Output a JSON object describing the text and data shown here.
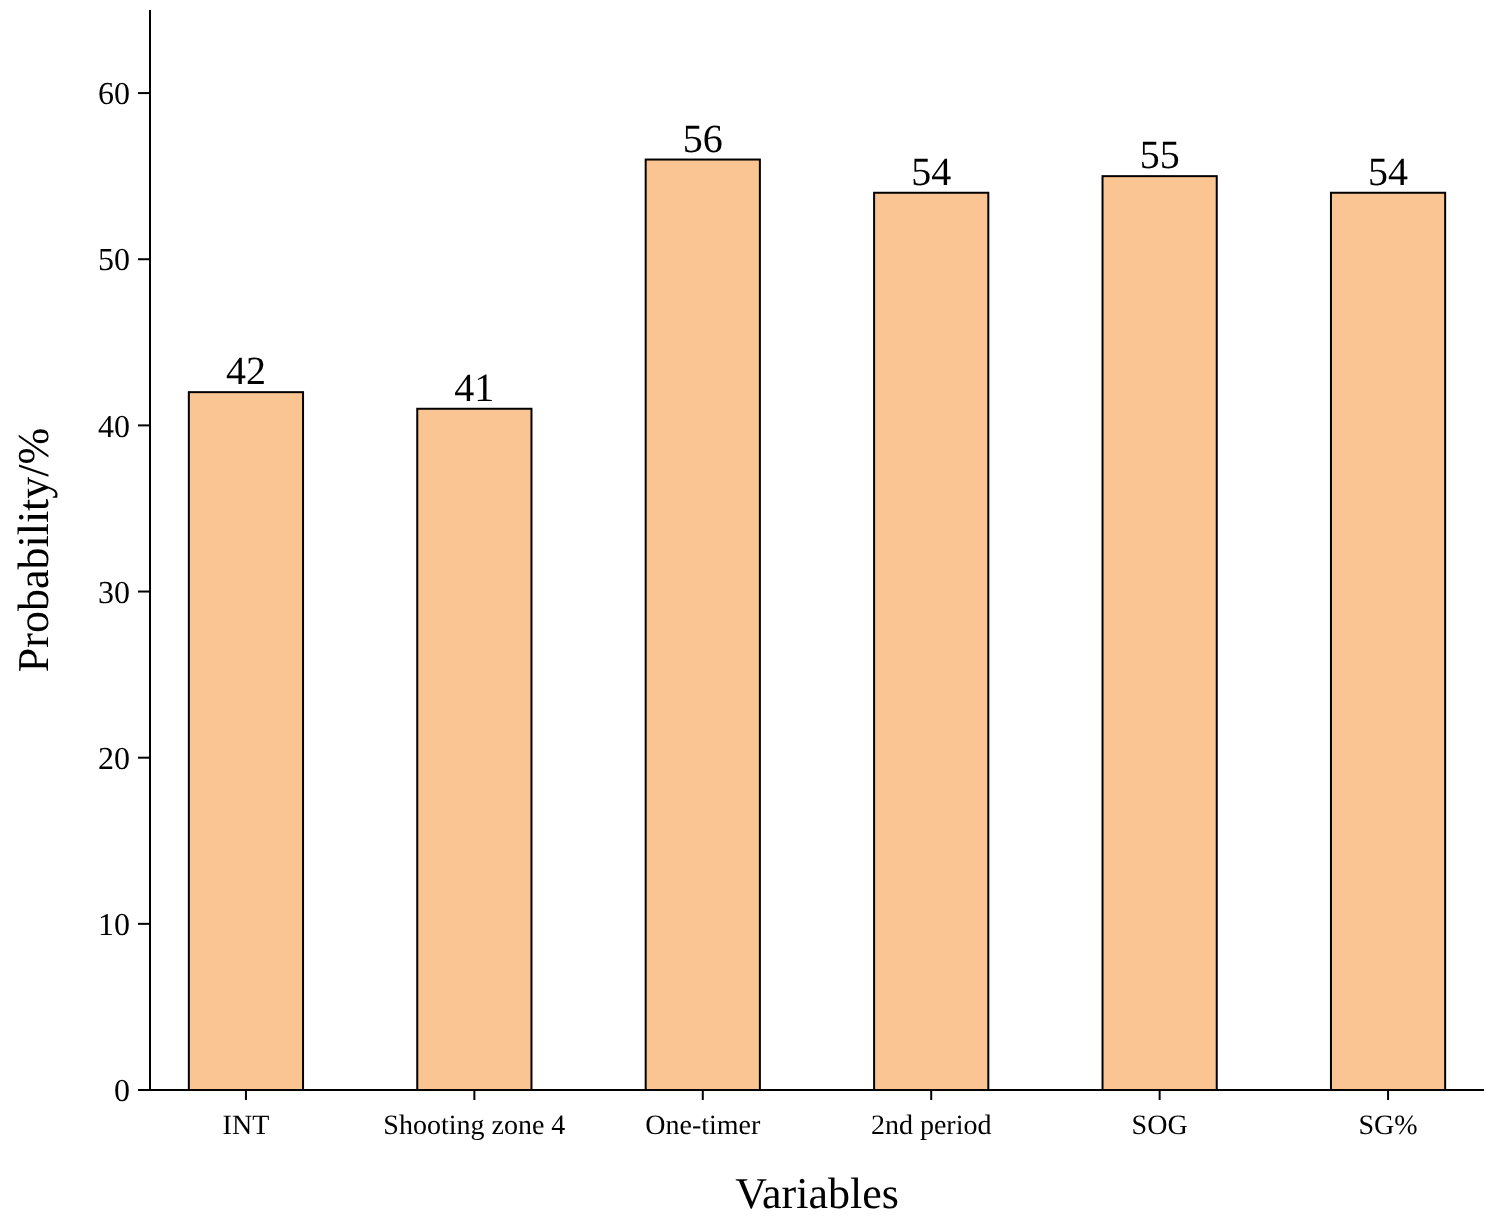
{
  "chart_data": {
    "type": "bar",
    "xlabel": "Variables",
    "ylabel": "Probability/%",
    "categories": [
      "INT",
      "Shooting zone 4",
      "One-timer",
      "2nd period",
      "SOG",
      "SG%"
    ],
    "values": [
      42,
      41,
      56,
      54,
      55,
      54
    ],
    "color": "#fac592",
    "ylim": [
      0,
      65
    ],
    "yticks": [
      0,
      10,
      20,
      30,
      40,
      50,
      60
    ],
    "data_labels": true,
    "grid": false
  }
}
